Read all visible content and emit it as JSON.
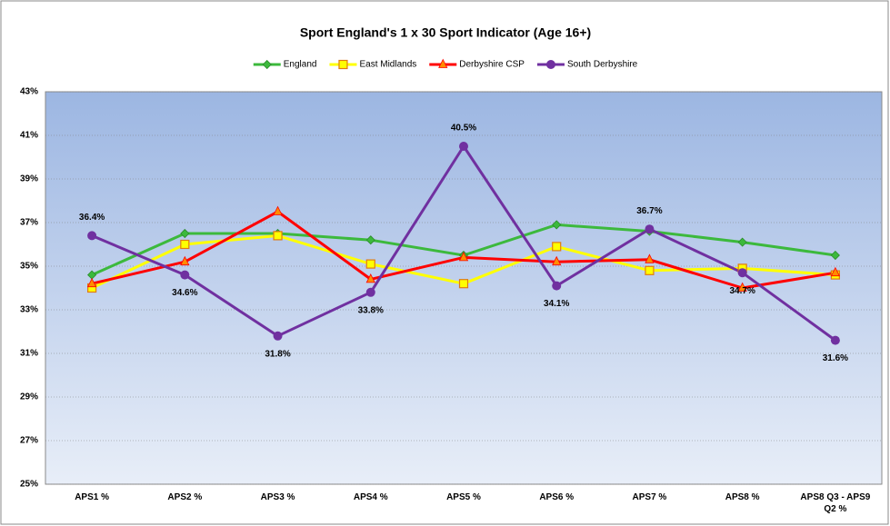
{
  "chart_data": {
    "type": "line",
    "title": "Sport England's 1 x 30 Sport Indicator (Age 16+)",
    "categories": [
      "APS1 %",
      "APS2 %",
      "APS3 %",
      "APS4 %",
      "APS5 %",
      "APS6 %",
      "APS7 %",
      "APS8 %",
      "APS8 Q3 - APS9 Q2 %"
    ],
    "series": [
      {
        "name": "England",
        "color": "#3cb93c",
        "marker": "diamond",
        "values": [
          34.6,
          36.5,
          36.5,
          36.2,
          35.5,
          36.9,
          36.6,
          36.1,
          35.5
        ]
      },
      {
        "name": "East Midlands",
        "color": "#ffff00",
        "marker": "square",
        "values": [
          34.0,
          36.0,
          36.4,
          35.1,
          34.2,
          35.9,
          34.8,
          34.9,
          34.6
        ]
      },
      {
        "name": "Derbyshire CSP",
        "color": "#ff0000",
        "marker": "triangle",
        "values": [
          34.2,
          35.2,
          37.5,
          34.4,
          35.4,
          35.2,
          35.3,
          34.0,
          34.7
        ]
      },
      {
        "name": "South Derbyshire",
        "color": "#7030a0",
        "marker": "circle",
        "values": [
          36.4,
          34.6,
          31.8,
          33.8,
          40.5,
          34.1,
          36.7,
          34.7,
          31.6
        ],
        "value_labels": [
          "36.4%",
          "34.6%",
          "31.8%",
          "33.8%",
          "40.5%",
          "34.1%",
          "36.7%",
          "34.7%",
          "31.6%"
        ]
      }
    ],
    "ylim": [
      25,
      43
    ],
    "yticks": [
      {
        "value": 25,
        "label": "25%"
      },
      {
        "value": 27,
        "label": "27%"
      },
      {
        "value": 29,
        "label": "29%"
      },
      {
        "value": 31,
        "label": "31%"
      },
      {
        "value": 33,
        "label": "33%"
      },
      {
        "value": 35,
        "label": "35%"
      },
      {
        "value": 37,
        "label": "37%"
      },
      {
        "value": 39,
        "label": "39%"
      },
      {
        "value": 41,
        "label": "41%"
      },
      {
        "value": 43,
        "label": "43%"
      }
    ],
    "grid": true,
    "legend": "top"
  }
}
